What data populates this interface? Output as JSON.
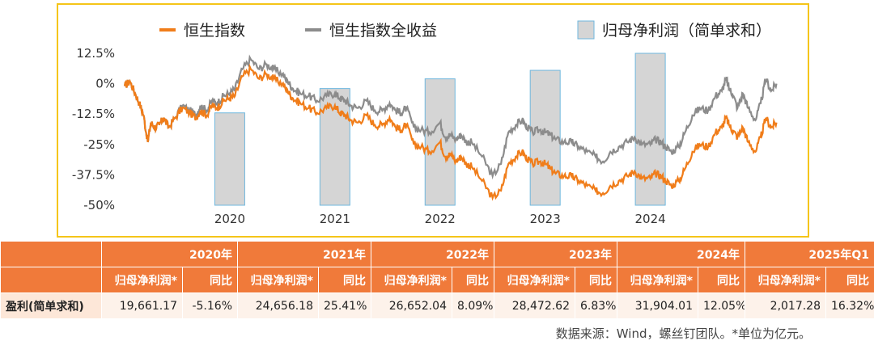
{
  "chart_data": {
    "type": "line",
    "series": [
      {
        "name": "恒生指数",
        "color": "#f07d1a"
      },
      {
        "name": "恒生指数全收益",
        "color": "#8c8c8c"
      },
      {
        "name": "归母净利润（简单求和）",
        "color": "#d5d5d5",
        "type": "bar"
      }
    ],
    "y_ticks": [
      "12.5%",
      "0%",
      "-12.5%",
      "-25%",
      "-37.5%",
      "-50%"
    ],
    "ylim": [
      -50,
      12.5
    ],
    "x_ticks": [
      "2020",
      "2021",
      "2022",
      "2023",
      "2024"
    ],
    "xlim": [
      2019.0,
      2025.25
    ],
    "bars": {
      "x": [
        2020,
        2021,
        2022,
        2023,
        2024
      ],
      "values": [
        -12,
        -2,
        2,
        5.5,
        12.5
      ]
    },
    "hsi": {
      "x": [
        2019.0,
        2019.05,
        2019.1,
        2019.14,
        2019.18,
        2019.22,
        2019.25,
        2019.29,
        2019.33,
        2019.37,
        2019.42,
        2019.48,
        2019.55,
        2019.62,
        2019.68,
        2019.72,
        2019.78,
        2019.83,
        2019.88,
        2019.94,
        2020.0,
        2020.05,
        2020.12,
        2020.2,
        2020.28,
        2020.35,
        2020.42,
        2020.5,
        2020.55,
        2020.6,
        2020.67,
        2020.75,
        2020.83,
        2020.92,
        2021.0,
        2021.05,
        2021.1,
        2021.15,
        2021.22,
        2021.3,
        2021.38,
        2021.45,
        2021.52,
        2021.58,
        2021.63,
        2021.68,
        2021.75,
        2021.82,
        2021.9,
        2022.0,
        2022.05,
        2022.1,
        2022.15,
        2022.2,
        2022.25,
        2022.3,
        2022.4,
        2022.5,
        2022.58,
        2022.65,
        2022.72,
        2022.78,
        2022.83,
        2022.88,
        2022.95,
        2023.0,
        2023.05,
        2023.1,
        2023.18,
        2023.25,
        2023.32,
        2023.4,
        2023.48,
        2023.55,
        2023.62,
        2023.7,
        2023.78,
        2023.85,
        2023.92,
        2024.0,
        2024.05,
        2024.1,
        2024.15,
        2024.2,
        2024.27,
        2024.33,
        2024.4,
        2024.47,
        2024.55,
        2024.62,
        2024.68,
        2024.72,
        2024.75,
        2024.78,
        2024.83,
        2024.88,
        2024.93,
        2025.0,
        2025.05,
        2025.1,
        2025.15,
        2025.2
      ],
      "y": [
        -1,
        1,
        -4,
        -8,
        -13,
        -24,
        -16,
        -18,
        -17,
        -14,
        -18,
        -14,
        -10,
        -12,
        -14,
        -11,
        -13,
        -9,
        -10,
        -7,
        -6,
        -5,
        3,
        6,
        2,
        4,
        2,
        0,
        -3,
        -6,
        -8,
        -10,
        -12,
        -10,
        -9,
        -12,
        -13,
        -15,
        -16,
        -13,
        -17,
        -17,
        -14,
        -18,
        -19,
        -17,
        -25,
        -26,
        -28,
        -24,
        -30,
        -29,
        -32,
        -30,
        -33,
        -34,
        -40,
        -47,
        -44,
        -33,
        -30,
        -28,
        -31,
        -33,
        -32,
        -33,
        -35,
        -37,
        -38,
        -38,
        -40,
        -42,
        -44,
        -45,
        -42,
        -40,
        -38,
        -36,
        -39,
        -39,
        -37,
        -38,
        -40,
        -42,
        -40,
        -35,
        -28,
        -25,
        -26,
        -20,
        -18,
        -14,
        -17,
        -19,
        -22,
        -18,
        -24,
        -28,
        -22,
        -14,
        -18,
        -16
      ]
    },
    "hsi_tr": {
      "x": [
        2019.0,
        2019.05,
        2019.1,
        2019.14,
        2019.18,
        2019.22,
        2019.25,
        2019.29,
        2019.33,
        2019.37,
        2019.42,
        2019.48,
        2019.55,
        2019.62,
        2019.68,
        2019.72,
        2019.78,
        2019.83,
        2019.88,
        2019.94,
        2020.0,
        2020.05,
        2020.12,
        2020.2,
        2020.28,
        2020.35,
        2020.42,
        2020.5,
        2020.55,
        2020.6,
        2020.67,
        2020.75,
        2020.83,
        2020.92,
        2021.0,
        2021.05,
        2021.1,
        2021.15,
        2021.22,
        2021.3,
        2021.38,
        2021.45,
        2021.52,
        2021.58,
        2021.63,
        2021.68,
        2021.75,
        2021.82,
        2021.9,
        2022.0,
        2022.05,
        2022.1,
        2022.15,
        2022.2,
        2022.25,
        2022.3,
        2022.4,
        2022.5,
        2022.58,
        2022.65,
        2022.72,
        2022.78,
        2022.83,
        2022.88,
        2022.95,
        2023.0,
        2023.05,
        2023.1,
        2023.18,
        2023.25,
        2023.32,
        2023.4,
        2023.48,
        2023.55,
        2023.62,
        2023.7,
        2023.78,
        2023.85,
        2023.92,
        2024.0,
        2024.05,
        2024.1,
        2024.15,
        2024.2,
        2024.27,
        2024.33,
        2024.4,
        2024.47,
        2024.55,
        2024.62,
        2024.68,
        2024.72,
        2024.75,
        2024.78,
        2024.83,
        2024.88,
        2024.93,
        2025.0,
        2025.05,
        2025.1,
        2025.15,
        2025.2
      ],
      "y": [
        -1,
        1,
        -4,
        -8,
        -13,
        -24,
        -16,
        -18,
        -17,
        -14,
        -18,
        -14,
        -9,
        -11,
        -13,
        -9,
        -11,
        -7,
        -8,
        -5,
        -4,
        -2,
        6,
        10,
        6,
        8,
        6,
        4,
        1,
        -2,
        -4,
        -5,
        -7,
        -5,
        -4,
        -6,
        -7,
        -9,
        -10,
        -7,
        -11,
        -11,
        -8,
        -11,
        -12,
        -10,
        -18,
        -19,
        -20,
        -16,
        -22,
        -21,
        -23,
        -21,
        -24,
        -24,
        -30,
        -38,
        -33,
        -20,
        -17,
        -15,
        -18,
        -20,
        -19,
        -20,
        -21,
        -23,
        -24,
        -24,
        -26,
        -28,
        -30,
        -32,
        -28,
        -26,
        -24,
        -22,
        -25,
        -25,
        -23,
        -24,
        -26,
        -28,
        -26,
        -20,
        -13,
        -10,
        -11,
        -5,
        -3,
        2,
        -2,
        -4,
        -10,
        -4,
        -10,
        -15,
        -8,
        2,
        -3,
        0
      ]
    }
  },
  "legend": {
    "hsi": "恒生指数",
    "hsi_tr": "恒生指数全收益",
    "profit": "归母净利润（简单求和）"
  },
  "table": {
    "years": [
      "2020年",
      "2021年",
      "2022年",
      "2023年",
      "2024年",
      "2025年Q1"
    ],
    "sub_profit": "归母净利润*",
    "sub_yoy": "同比",
    "row_label": "盈利(简单求和)",
    "values": [
      {
        "profit": "19,661.17",
        "yoy": "-5.16%"
      },
      {
        "profit": "24,656.18",
        "yoy": "25.41%"
      },
      {
        "profit": "26,652.04",
        "yoy": "8.09%"
      },
      {
        "profit": "28,472.62",
        "yoy": "6.83%"
      },
      {
        "profit": "31,904.01",
        "yoy": "12.05%"
      },
      {
        "profit": "2,017.28",
        "yoy": "16.32%"
      }
    ]
  },
  "source_note": "数据来源：Wind，螺丝钉团队。*单位为亿元。"
}
